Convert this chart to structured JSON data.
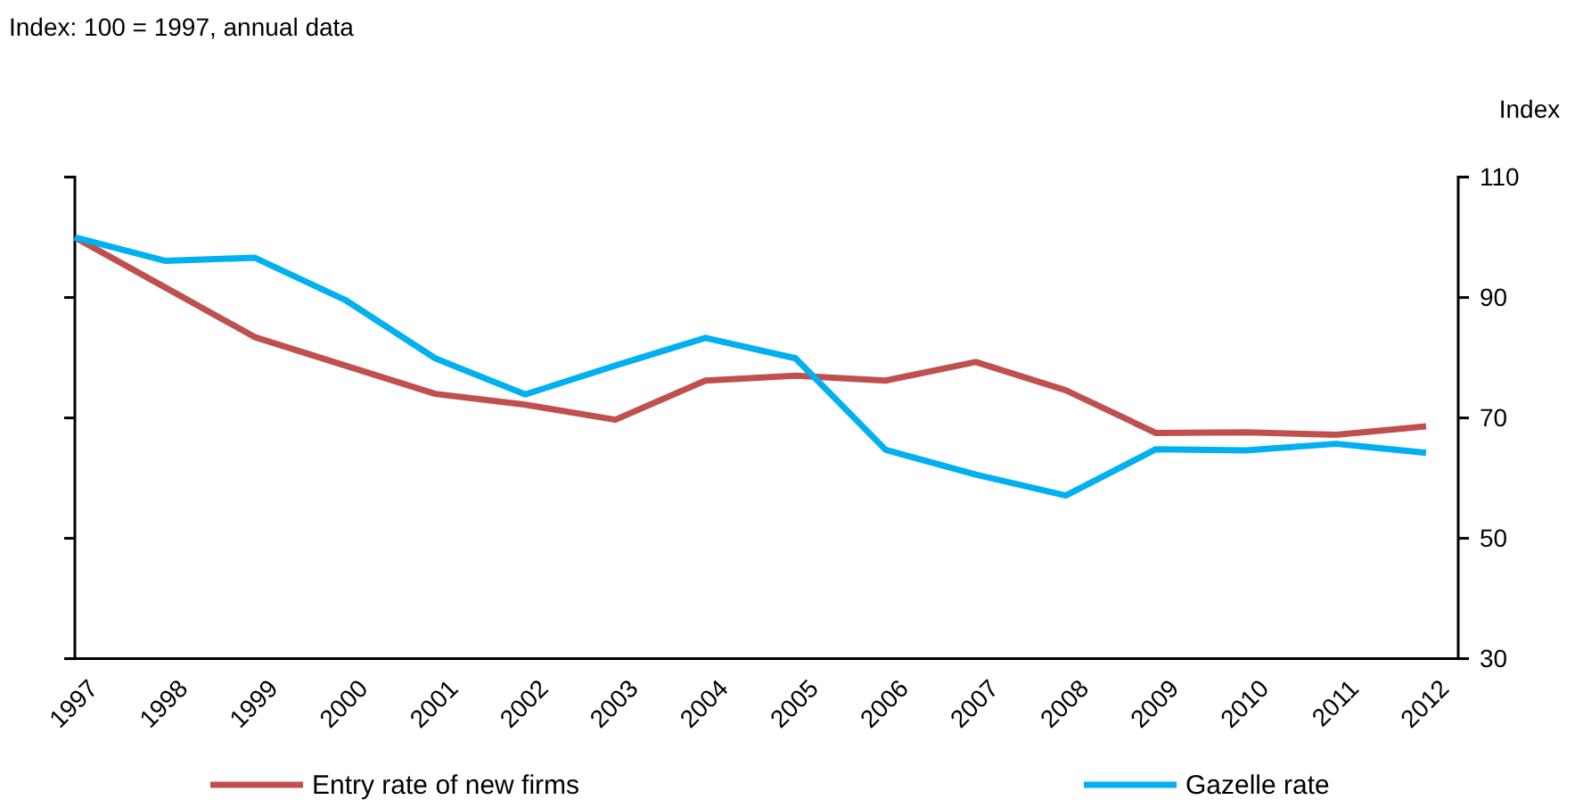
{
  "chart_data": {
    "type": "line",
    "title": "Index: 100 = 1997, annual data",
    "ylabel": "Index",
    "categories": [
      "1997",
      "1998",
      "1999",
      "2000",
      "2001",
      "2002",
      "2003",
      "2004",
      "2005",
      "2006",
      "2007",
      "2008",
      "2009",
      "2010",
      "2011",
      "2012"
    ],
    "series": [
      {
        "name": "Entry rate of new firms",
        "color": "#c0504d",
        "values": [
          100,
          91.7,
          83.4,
          78.7,
          74.0,
          72.2,
          69.7,
          76.2,
          77.0,
          76.2,
          79.3,
          74.6,
          67.5,
          67.6,
          67.2,
          68.6
        ]
      },
      {
        "name": "Gazelle rate",
        "color": "#00b0f0",
        "values": [
          100,
          96.1,
          96.6,
          89.6,
          79.9,
          73.9,
          78.7,
          83.3,
          79.9,
          64.7,
          60.6,
          57.1,
          64.8,
          64.6,
          65.7,
          64.2
        ]
      }
    ],
    "ylim": [
      30,
      110
    ],
    "yticks": [
      30,
      50,
      70,
      90,
      110
    ],
    "grid": false,
    "legend": "bottom",
    "marker": "none",
    "line_style": "solid"
  }
}
